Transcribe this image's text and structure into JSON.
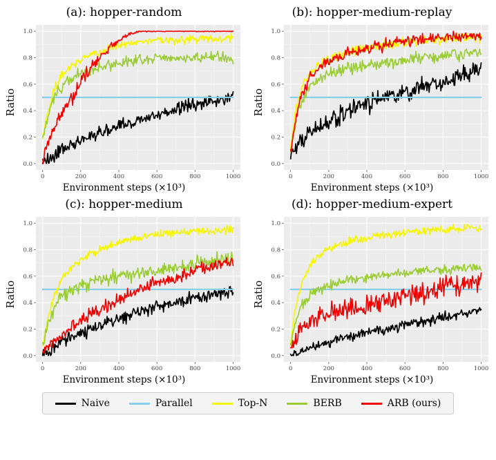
{
  "figure": {
    "xlabel": "Environment steps (×10³)",
    "ylabel": "Ratio",
    "x_ticks": [
      0,
      200,
      400,
      600,
      800,
      1000
    ],
    "y_ticks": [
      0.0,
      0.2,
      0.4,
      0.6,
      0.8,
      1.0
    ],
    "colors": {
      "plot_bg": "#EBEBEB",
      "grid_major": "#FFFFFF",
      "grid_minor": "#F7F7F7",
      "tick_label": "#444444",
      "tick_mark": "#555555"
    }
  },
  "legend": {
    "items": [
      {
        "label": "Naive",
        "color": "#000000"
      },
      {
        "label": "Parallel",
        "color": "#87CEEB"
      },
      {
        "label": "Top-N",
        "color": "#F5F500"
      },
      {
        "label": "BERB",
        "color": "#9ACD32"
      },
      {
        "label": "ARB (ours)",
        "color": "#F10000"
      }
    ]
  },
  "chart_data": [
    {
      "type": "line",
      "title": "(a): hopper-random",
      "xlabel": "Environment steps (×10³)",
      "ylabel": "Ratio",
      "xlim": [
        0,
        1000
      ],
      "ylim": [
        0.0,
        1.0
      ],
      "series": [
        {
          "name": "Naive",
          "color": "#000000",
          "lw": 1.7,
          "noise": 0.035,
          "x": [
            0,
            50,
            100,
            150,
            200,
            300,
            400,
            500,
            600,
            700,
            800,
            900,
            1000
          ],
          "y": [
            0.0,
            0.05,
            0.1,
            0.14,
            0.17,
            0.24,
            0.28,
            0.33,
            0.37,
            0.41,
            0.45,
            0.47,
            0.5
          ]
        },
        {
          "name": "Parallel",
          "color": "#87CEEB",
          "lw": 2.2,
          "noise": 0,
          "x": [
            0,
            1000
          ],
          "y": [
            0.5,
            0.5
          ]
        },
        {
          "name": "Top-N",
          "color": "#F5F500",
          "lw": 1.6,
          "noise": 0.022,
          "x": [
            0,
            30,
            60,
            100,
            140,
            180,
            220,
            300,
            400,
            500,
            600,
            700,
            800,
            900,
            1000
          ],
          "y": [
            0.2,
            0.4,
            0.55,
            0.66,
            0.73,
            0.77,
            0.8,
            0.84,
            0.9,
            0.92,
            0.93,
            0.935,
            0.94,
            0.94,
            0.95
          ]
        },
        {
          "name": "BERB",
          "color": "#9ACD32",
          "lw": 1.6,
          "noise": 0.03,
          "x": [
            0,
            30,
            60,
            100,
            150,
            200,
            300,
            400,
            500,
            600,
            700,
            800,
            900,
            1000
          ],
          "y": [
            0.18,
            0.38,
            0.5,
            0.58,
            0.64,
            0.68,
            0.73,
            0.76,
            0.78,
            0.8,
            0.79,
            0.8,
            0.81,
            0.79
          ]
        },
        {
          "name": "ARB (ours)",
          "color": "#F10000",
          "lw": 1.6,
          "noise": [
            0.03,
            0.04,
            0.04,
            0.035,
            0.035,
            0.03,
            0.03,
            0.025,
            0.02,
            0.015,
            0.01,
            0.008,
            0.004,
            0.003,
            0.003,
            0.003,
            0.003,
            0.003
          ],
          "x": [
            0,
            40,
            80,
            120,
            160,
            200,
            250,
            300,
            350,
            400,
            430,
            460,
            520,
            600,
            700,
            800,
            900,
            1000
          ],
          "y": [
            0.02,
            0.2,
            0.32,
            0.42,
            0.5,
            0.62,
            0.72,
            0.8,
            0.87,
            0.93,
            0.96,
            0.985,
            1.0,
            1.0,
            1.0,
            1.0,
            1.0,
            1.0
          ]
        }
      ]
    },
    {
      "type": "line",
      "title": "(b): hopper-medium-replay",
      "xlabel": "Environment steps (×10³)",
      "ylabel": "Ratio",
      "xlim": [
        0,
        1000
      ],
      "ylim": [
        0.0,
        1.0
      ],
      "series": [
        {
          "name": "Naive",
          "color": "#000000",
          "lw": 1.7,
          "noise": 0.05,
          "x": [
            0,
            30,
            60,
            100,
            150,
            200,
            300,
            400,
            500,
            600,
            700,
            800,
            900,
            1000
          ],
          "y": [
            0.1,
            0.12,
            0.18,
            0.22,
            0.28,
            0.32,
            0.4,
            0.45,
            0.5,
            0.54,
            0.58,
            0.62,
            0.66,
            0.72
          ]
        },
        {
          "name": "Parallel",
          "color": "#87CEEB",
          "lw": 2.2,
          "noise": 0,
          "x": [
            0,
            1000
          ],
          "y": [
            0.5,
            0.5
          ]
        },
        {
          "name": "Top-N",
          "color": "#F5F500",
          "lw": 1.6,
          "noise": 0.025,
          "x": [
            0,
            30,
            60,
            100,
            150,
            200,
            300,
            400,
            500,
            600,
            700,
            800,
            900,
            1000
          ],
          "y": [
            0.12,
            0.42,
            0.58,
            0.68,
            0.75,
            0.79,
            0.84,
            0.87,
            0.9,
            0.92,
            0.93,
            0.94,
            0.95,
            0.96
          ]
        },
        {
          "name": "BERB",
          "color": "#9ACD32",
          "lw": 1.6,
          "noise": 0.035,
          "x": [
            0,
            30,
            60,
            100,
            150,
            200,
            300,
            400,
            500,
            600,
            700,
            800,
            900,
            1000
          ],
          "y": [
            0.08,
            0.35,
            0.48,
            0.58,
            0.64,
            0.68,
            0.72,
            0.74,
            0.76,
            0.78,
            0.8,
            0.82,
            0.83,
            0.85
          ]
        },
        {
          "name": "ARB (ours)",
          "color": "#F10000",
          "lw": 1.6,
          "noise": 0.03,
          "x": [
            0,
            30,
            60,
            100,
            150,
            200,
            300,
            400,
            500,
            600,
            700,
            800,
            900,
            1000
          ],
          "y": [
            0.08,
            0.35,
            0.52,
            0.64,
            0.72,
            0.77,
            0.83,
            0.87,
            0.9,
            0.92,
            0.94,
            0.95,
            0.96,
            0.97
          ]
        }
      ]
    },
    {
      "type": "line",
      "title": "(c): hopper-medium",
      "xlabel": "Environment steps (×10³)",
      "ylabel": "Ratio",
      "xlim": [
        0,
        1000
      ],
      "ylim": [
        0.0,
        1.0
      ],
      "series": [
        {
          "name": "Naive",
          "color": "#000000",
          "lw": 1.7,
          "noise": 0.035,
          "x": [
            0,
            50,
            100,
            200,
            300,
            400,
            500,
            600,
            700,
            800,
            900,
            1000
          ],
          "y": [
            0.0,
            0.05,
            0.1,
            0.17,
            0.23,
            0.28,
            0.33,
            0.37,
            0.4,
            0.44,
            0.46,
            0.48
          ]
        },
        {
          "name": "Parallel",
          "color": "#87CEEB",
          "lw": 2.2,
          "noise": 0,
          "x": [
            0,
            1000
          ],
          "y": [
            0.5,
            0.5
          ]
        },
        {
          "name": "Top-N",
          "color": "#F5F500",
          "lw": 1.6,
          "noise": 0.022,
          "x": [
            0,
            30,
            60,
            100,
            150,
            200,
            300,
            400,
            500,
            600,
            700,
            800,
            900,
            1000
          ],
          "y": [
            0.08,
            0.3,
            0.45,
            0.57,
            0.66,
            0.72,
            0.8,
            0.86,
            0.89,
            0.91,
            0.93,
            0.94,
            0.95,
            0.95
          ]
        },
        {
          "name": "BERB",
          "color": "#9ACD32",
          "lw": 1.6,
          "noise": 0.035,
          "x": [
            0,
            30,
            60,
            100,
            150,
            200,
            300,
            400,
            500,
            600,
            700,
            800,
            900,
            1000
          ],
          "y": [
            0.08,
            0.25,
            0.36,
            0.44,
            0.5,
            0.53,
            0.57,
            0.6,
            0.62,
            0.64,
            0.67,
            0.7,
            0.72,
            0.73
          ]
        },
        {
          "name": "ARB (ours)",
          "color": "#F10000",
          "lw": 1.6,
          "noise": 0.035,
          "x": [
            0,
            50,
            100,
            200,
            300,
            400,
            500,
            600,
            700,
            800,
            900,
            1000
          ],
          "y": [
            0.02,
            0.1,
            0.17,
            0.27,
            0.35,
            0.42,
            0.5,
            0.56,
            0.6,
            0.65,
            0.68,
            0.72
          ]
        }
      ]
    },
    {
      "type": "line",
      "title": "(d): hopper-medium-expert",
      "xlabel": "Environment steps (×10³)",
      "ylabel": "Ratio",
      "xlim": [
        0,
        1000
      ],
      "ylim": [
        0.0,
        1.0
      ],
      "series": [
        {
          "name": "Naive",
          "color": "#000000",
          "lw": 1.7,
          "noise": 0.025,
          "x": [
            0,
            100,
            200,
            300,
            400,
            500,
            600,
            700,
            800,
            900,
            1000
          ],
          "y": [
            0.0,
            0.06,
            0.1,
            0.14,
            0.17,
            0.2,
            0.23,
            0.26,
            0.29,
            0.31,
            0.34
          ]
        },
        {
          "name": "Parallel",
          "color": "#87CEEB",
          "lw": 2.2,
          "noise": 0,
          "x": [
            0,
            1000
          ],
          "y": [
            0.5,
            0.5
          ]
        },
        {
          "name": "Top-N",
          "color": "#F5F500",
          "lw": 1.6,
          "noise": 0.022,
          "x": [
            0,
            30,
            60,
            100,
            150,
            200,
            300,
            400,
            500,
            600,
            700,
            800,
            900,
            1000
          ],
          "y": [
            0.1,
            0.4,
            0.56,
            0.68,
            0.76,
            0.8,
            0.86,
            0.89,
            0.91,
            0.93,
            0.94,
            0.95,
            0.96,
            0.96
          ]
        },
        {
          "name": "BERB",
          "color": "#9ACD32",
          "lw": 1.6,
          "noise": 0.025,
          "x": [
            0,
            30,
            60,
            100,
            150,
            200,
            300,
            400,
            500,
            600,
            700,
            800,
            900,
            1000
          ],
          "y": [
            0.08,
            0.28,
            0.38,
            0.46,
            0.5,
            0.53,
            0.57,
            0.59,
            0.61,
            0.62,
            0.64,
            0.65,
            0.66,
            0.67
          ]
        },
        {
          "name": "ARB (ours)",
          "color": "#F10000",
          "lw": 1.6,
          "noise": 0.055,
          "x": [
            0,
            30,
            60,
            100,
            150,
            200,
            300,
            400,
            500,
            600,
            700,
            800,
            900,
            1000
          ],
          "y": [
            0.02,
            0.12,
            0.2,
            0.25,
            0.28,
            0.31,
            0.35,
            0.38,
            0.42,
            0.45,
            0.48,
            0.52,
            0.54,
            0.56
          ]
        }
      ]
    }
  ]
}
